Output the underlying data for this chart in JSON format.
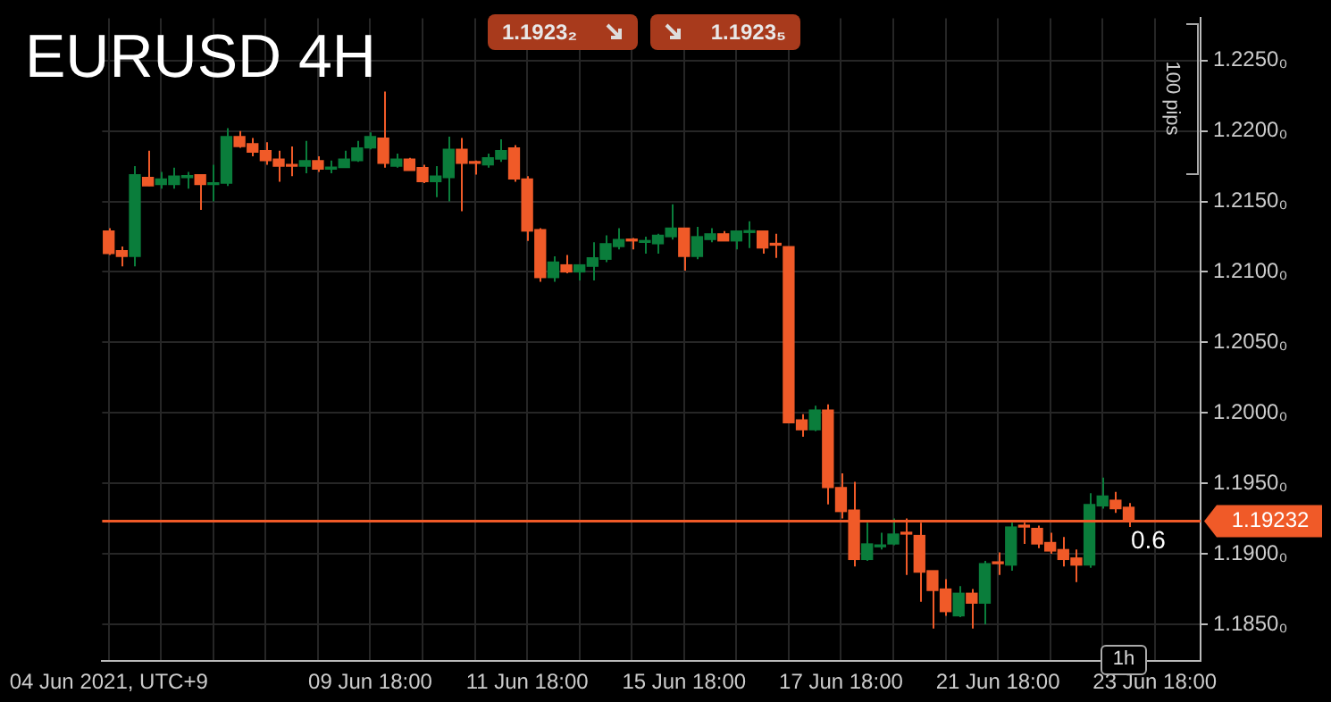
{
  "chart_data": {
    "type": "candlestick",
    "title": "EURUSD 4H",
    "categories": [
      "04 Jun 2021, UTC+9",
      null,
      null,
      null,
      null,
      null,
      null,
      null,
      null,
      null,
      null,
      null,
      null,
      null,
      null,
      null,
      null,
      null,
      null,
      null,
      "09 Jun 18:00",
      null,
      null,
      null,
      null,
      null,
      null,
      null,
      null,
      null,
      null,
      null,
      "11 Jun 18:00",
      null,
      null,
      null,
      null,
      null,
      null,
      null,
      null,
      null,
      null,
      null,
      "15 Jun 18:00",
      null,
      null,
      null,
      null,
      null,
      null,
      null,
      null,
      null,
      null,
      null,
      "17 Jun 18:00",
      null,
      null,
      null,
      null,
      null,
      null,
      null,
      null,
      null,
      null,
      null,
      "21 Jun 18:00",
      null,
      null,
      null,
      null,
      null,
      null,
      null,
      null,
      null,
      null,
      null,
      "23 Jun 18:00",
      null,
      null,
      null
    ],
    "ohlc": [
      [
        1.2129,
        1.2131,
        1.2112,
        1.2113
      ],
      [
        1.2115,
        1.2118,
        1.2104,
        1.2111
      ],
      [
        1.2111,
        1.2175,
        1.2104,
        1.2169
      ],
      [
        1.2167,
        1.2186,
        1.2161,
        1.2161
      ],
      [
        1.2162,
        1.2171,
        1.2159,
        1.2166
      ],
      [
        1.2162,
        1.2174,
        1.2159,
        1.2168
      ],
      [
        1.2167,
        1.2171,
        1.2159,
        1.2168
      ],
      [
        1.2169,
        1.2169,
        1.2144,
        1.2162
      ],
      [
        1.2162,
        1.2176,
        1.215,
        1.2163
      ],
      [
        1.2163,
        1.2202,
        1.2161,
        1.2196
      ],
      [
        1.2196,
        1.22,
        1.2188,
        1.2189
      ],
      [
        1.2191,
        1.2195,
        1.2182,
        1.2185
      ],
      [
        1.2186,
        1.2192,
        1.2176,
        1.2179
      ],
      [
        1.218,
        1.2186,
        1.2164,
        1.2175
      ],
      [
        1.2176,
        1.2189,
        1.2168,
        1.2175
      ],
      [
        1.2175,
        1.2193,
        1.217,
        1.2179
      ],
      [
        1.2179,
        1.2182,
        1.2171,
        1.2173
      ],
      [
        1.2173,
        1.2179,
        1.217,
        1.2174
      ],
      [
        1.2174,
        1.2186,
        1.2174,
        1.218
      ],
      [
        1.2179,
        1.2193,
        1.2178,
        1.2188
      ],
      [
        1.2188,
        1.2199,
        1.2187,
        1.2196
      ],
      [
        1.2195,
        1.2228,
        1.2174,
        1.2177
      ],
      [
        1.2175,
        1.2184,
        1.2174,
        1.218
      ],
      [
        1.218,
        1.2181,
        1.2172,
        1.2172
      ],
      [
        1.2174,
        1.2176,
        1.2163,
        1.2164
      ],
      [
        1.2164,
        1.2175,
        1.2153,
        1.2168
      ],
      [
        1.2167,
        1.2196,
        1.215,
        1.2187
      ],
      [
        1.2187,
        1.2195,
        1.2143,
        1.2177
      ],
      [
        1.2178,
        1.2179,
        1.2169,
        1.2177
      ],
      [
        1.2176,
        1.2184,
        1.2174,
        1.2181
      ],
      [
        1.218,
        1.2194,
        1.2178,
        1.2186
      ],
      [
        1.2188,
        1.219,
        1.2164,
        1.2166
      ],
      [
        1.2166,
        1.2168,
        1.2122,
        1.2129
      ],
      [
        1.213,
        1.2131,
        1.2093,
        1.2096
      ],
      [
        1.2096,
        1.2111,
        1.2093,
        1.2107
      ],
      [
        1.2105,
        1.2112,
        1.2099,
        1.21
      ],
      [
        1.21,
        1.2105,
        1.2094,
        1.2105
      ],
      [
        1.2104,
        1.2121,
        1.2094,
        1.211
      ],
      [
        1.2109,
        1.2126,
        1.2107,
        1.212
      ],
      [
        1.2118,
        1.2131,
        1.2116,
        1.2123
      ],
      [
        1.2123,
        1.2124,
        1.2116,
        1.2122
      ],
      [
        1.2121,
        1.2125,
        1.2113,
        1.2122
      ],
      [
        1.212,
        1.2127,
        1.2113,
        1.2126
      ],
      [
        1.2125,
        1.2148,
        1.2123,
        1.2131
      ],
      [
        1.2131,
        1.2131,
        1.2101,
        1.2111
      ],
      [
        1.2111,
        1.2132,
        1.2109,
        1.2125
      ],
      [
        1.2123,
        1.2131,
        1.2121,
        1.2127
      ],
      [
        1.2127,
        1.2129,
        1.2122,
        1.2122
      ],
      [
        1.2122,
        1.2129,
        1.2116,
        1.2129
      ],
      [
        1.2128,
        1.2136,
        1.2117,
        1.2129
      ],
      [
        1.2129,
        1.2129,
        1.2113,
        1.2117
      ],
      [
        1.212,
        1.2127,
        1.211,
        1.2119
      ],
      [
        1.2118,
        1.2118,
        1.1993,
        1.1993
      ],
      [
        1.1995,
        1.1999,
        1.1983,
        1.1988
      ],
      [
        1.1988,
        1.2005,
        1.1987,
        1.2002
      ],
      [
        1.2002,
        1.2006,
        1.1935,
        1.1947
      ],
      [
        1.1947,
        1.1957,
        1.1925,
        1.193
      ],
      [
        1.1931,
        1.1951,
        1.1891,
        1.1896
      ],
      [
        1.1896,
        1.1922,
        1.1895,
        1.1907
      ],
      [
        1.1905,
        1.1915,
        1.1903,
        1.1906
      ],
      [
        1.1907,
        1.1925,
        1.1906,
        1.1914
      ],
      [
        1.1915,
        1.1925,
        1.1885,
        1.1914
      ],
      [
        1.1913,
        1.1922,
        1.1866,
        1.1887
      ],
      [
        1.1888,
        1.1888,
        1.1847,
        1.1874
      ],
      [
        1.1875,
        1.1882,
        1.1856,
        1.1859
      ],
      [
        1.1856,
        1.1877,
        1.1855,
        1.1872
      ],
      [
        1.1872,
        1.1875,
        1.1847,
        1.1865
      ],
      [
        1.1865,
        1.1895,
        1.185,
        1.1893
      ],
      [
        1.1894,
        1.1901,
        1.1885,
        1.1893
      ],
      [
        1.1892,
        1.1922,
        1.1888,
        1.1919
      ],
      [
        1.192,
        1.1922,
        1.1907,
        1.1919
      ],
      [
        1.1918,
        1.192,
        1.1904,
        1.1907
      ],
      [
        1.1908,
        1.1915,
        1.19,
        1.1902
      ],
      [
        1.1903,
        1.1912,
        1.1891,
        1.1896
      ],
      [
        1.1897,
        1.1903,
        1.188,
        1.1892
      ],
      [
        1.1892,
        1.1943,
        1.189,
        1.1935
      ],
      [
        1.1934,
        1.1954,
        1.1932,
        1.1941
      ],
      [
        1.1938,
        1.1944,
        1.1929,
        1.1932
      ],
      [
        1.1933,
        1.1936,
        1.1919,
        1.1923
      ],
      null,
      null,
      null,
      null,
      null
    ],
    "colors": [
      "#f05a28",
      "#f05a28",
      "#0a7d3b",
      "#f05a28",
      "#0a7d3b",
      "#0a7d3b",
      "#0a7d3b",
      "#f05a28",
      "#0a7d3b",
      "#0a7d3b",
      "#f05a28",
      "#f05a28",
      "#f05a28",
      "#f05a28",
      "#f05a28",
      "#0a7d3b",
      "#f05a28",
      "#0a7d3b",
      "#0a7d3b",
      "#0a7d3b",
      "#0a7d3b",
      "#f05a28",
      "#0a7d3b",
      "#f05a28",
      "#f05a28",
      "#0a7d3b",
      "#0a7d3b",
      "#f05a28",
      "#f05a28",
      "#0a7d3b",
      "#0a7d3b",
      "#f05a28",
      "#f05a28",
      "#f05a28",
      "#0a7d3b",
      "#f05a28",
      "#0a7d3b",
      "#0a7d3b",
      "#0a7d3b",
      "#0a7d3b",
      "#f05a28",
      "#0a7d3b",
      "#0a7d3b",
      "#0a7d3b",
      "#f05a28",
      "#0a7d3b",
      "#0a7d3b",
      "#f05a28",
      "#0a7d3b",
      "#0a7d3b",
      "#f05a28",
      "#f05a28",
      "#f05a28",
      "#f05a28",
      "#0a7d3b",
      "#f05a28",
      "#f05a28",
      "#f05a28",
      "#0a7d3b",
      "#0a7d3b",
      "#0a7d3b",
      "#f05a28",
      "#f05a28",
      "#f05a28",
      "#f05a28",
      "#0a7d3b",
      "#f05a28",
      "#0a7d3b",
      "#f05a28",
      "#0a7d3b",
      "#f05a28",
      "#f05a28",
      "#f05a28",
      "#f05a28",
      "#f05a28",
      "#0a7d3b",
      "#0a7d3b",
      "#f05a28",
      "#f05a28",
      null,
      null,
      null,
      null,
      null
    ],
    "ylim": [
      1.1824,
      1.228
    ],
    "yticks": [
      {
        "value": 1.185,
        "label": "1.1850₀"
      },
      {
        "value": 1.19,
        "label": "1.1900₀"
      },
      {
        "value": 1.195,
        "label": "1.1950₀"
      },
      {
        "value": 1.2,
        "label": "1.2000₀"
      },
      {
        "value": 1.205,
        "label": "1.2050₀"
      },
      {
        "value": 1.21,
        "label": "1.2100₀"
      },
      {
        "value": 1.215,
        "label": "1.2150₀"
      },
      {
        "value": 1.22,
        "label": "1.2200₀"
      },
      {
        "value": 1.225,
        "label": "1.2250₀"
      }
    ],
    "grid": true,
    "ref_lines": [
      {
        "axis": "y",
        "value": 1.19232,
        "label": "1.19232",
        "color": "#f05a28"
      }
    ],
    "annotations": [
      "1.1923₂",
      "1.1923₅",
      "100 pips",
      "0.6",
      "1h"
    ]
  }
}
